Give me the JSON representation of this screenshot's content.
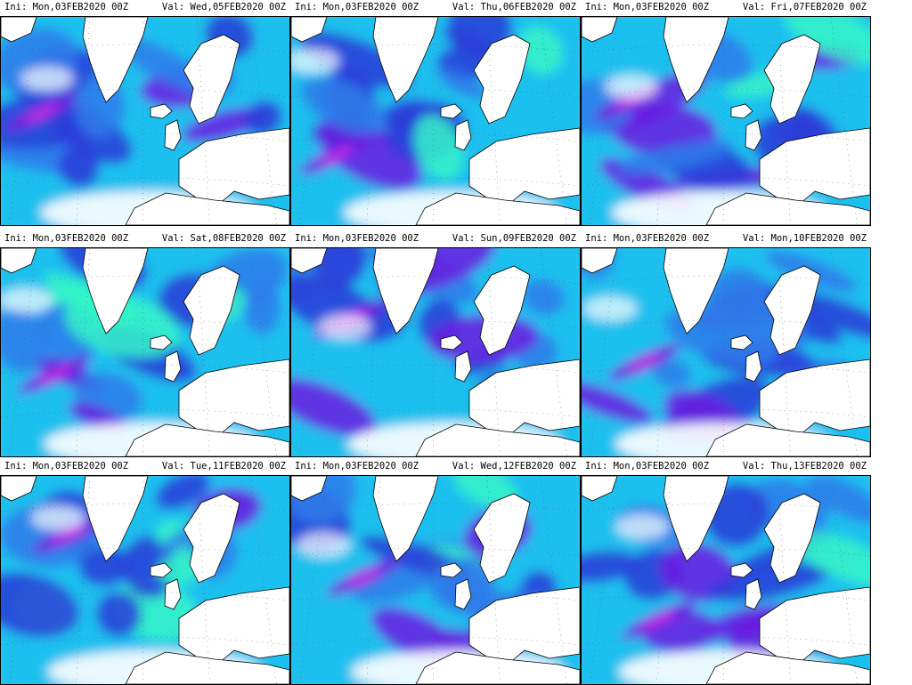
{
  "colors": {
    "light": "#34f5c8",
    "cyan": "#1ec0ee",
    "blue": "#2f7bea",
    "royal": "#2a3cd8",
    "violet": "#6a1be0",
    "magenta": "#d232e6",
    "land": "#ffffff",
    "coast": "#000000"
  },
  "panels": [
    {
      "ini": "Ini: Mon,03FEB2020 00Z",
      "val": "Val: Wed,05FEB2020 00Z"
    },
    {
      "ini": "Ini: Mon,03FEB2020 00Z",
      "val": "Val: Thu,06FEB2020 00Z"
    },
    {
      "ini": "Ini: Mon,03FEB2020 00Z",
      "val": "Val: Fri,07FEB2020 00Z"
    },
    {
      "ini": "Ini: Mon,03FEB2020 00Z",
      "val": "Val: Sat,08FEB2020 00Z"
    },
    {
      "ini": "Ini: Mon,03FEB2020 00Z",
      "val": "Val: Sun,09FEB2020 00Z"
    },
    {
      "ini": "Ini: Mon,03FEB2020 00Z",
      "val": "Val: Mon,10FEB2020 00Z"
    },
    {
      "ini": "Ini: Mon,03FEB2020 00Z",
      "val": "Val: Tue,11FEB2020 00Z"
    },
    {
      "ini": "Ini: Mon,03FEB2020 00Z",
      "val": "Val: Wed,12FEB2020 00Z"
    },
    {
      "ini": "Ini: Mon,03FEB2020 00Z",
      "val": "Val: Thu,13FEB2020 00Z"
    }
  ]
}
